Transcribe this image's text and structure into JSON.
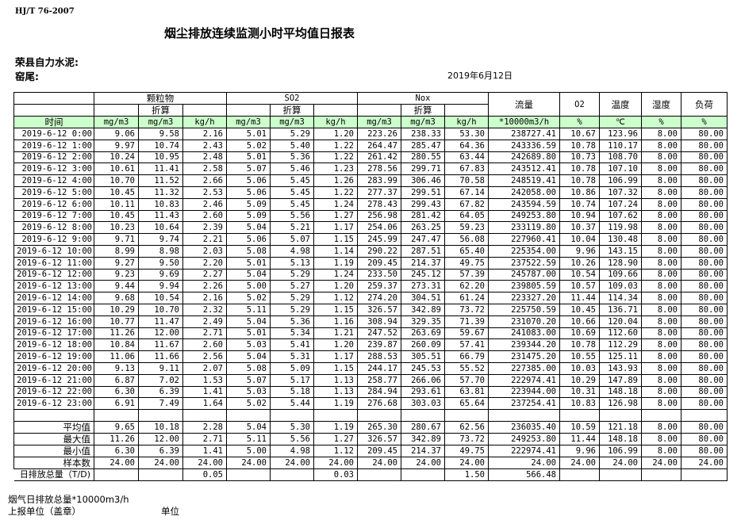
{
  "standard": "HJ/T  76-2007",
  "title": "烟尘排放连续监测小时平均值日报表",
  "company": "荣县自力水泥:",
  "kiln": "窑尾:",
  "date": "2019年6月12日",
  "header": {
    "groups": [
      "颗粒物",
      "SO2",
      "Nox"
    ],
    "converted": "折算",
    "flow": "流量",
    "o2": "O2",
    "temp": "温度",
    "humidity": "湿度",
    "load": "负荷",
    "time": "时间",
    "units": [
      "mg/m3",
      "mg/m3",
      "kg/h",
      "mg/m3",
      "mg/m3",
      "kg/h",
      "mg/m3",
      "mg/m3",
      "kg/h",
      "*10000m3/h",
      "%",
      "℃",
      "%",
      "%"
    ]
  },
  "rows": [
    [
      "2019-6-12 0:00",
      "9.06",
      "9.58",
      "2.16",
      "5.01",
      "5.29",
      "1.20",
      "223.26",
      "238.33",
      "53.30",
      "238727.41",
      "10.67",
      "123.96",
      "8.00",
      "80.00"
    ],
    [
      "2019-6-12 1:00",
      "9.97",
      "10.74",
      "2.43",
      "5.02",
      "5.40",
      "1.22",
      "264.47",
      "285.47",
      "64.36",
      "243336.59",
      "10.78",
      "110.17",
      "8.00",
      "80.00"
    ],
    [
      "2019-6-12 2:00",
      "10.24",
      "10.95",
      "2.48",
      "5.01",
      "5.36",
      "1.22",
      "261.42",
      "280.55",
      "63.44",
      "242689.80",
      "10.73",
      "108.70",
      "8.00",
      "80.00"
    ],
    [
      "2019-6-12 3:00",
      "10.61",
      "11.41",
      "2.58",
      "5.07",
      "5.46",
      "1.23",
      "278.56",
      "299.71",
      "67.83",
      "243512.41",
      "10.78",
      "107.10",
      "8.00",
      "80.00"
    ],
    [
      "2019-6-12 4:00",
      "10.70",
      "11.52",
      "2.66",
      "5.06",
      "5.45",
      "1.26",
      "283.99",
      "306.46",
      "70.58",
      "248519.41",
      "10.78",
      "106.99",
      "8.00",
      "80.00"
    ],
    [
      "2019-6-12 5:00",
      "10.45",
      "11.32",
      "2.53",
      "5.06",
      "5.45",
      "1.22",
      "277.37",
      "299.51",
      "67.14",
      "242058.00",
      "10.86",
      "107.32",
      "8.00",
      "80.00"
    ],
    [
      "2019-6-12 6:00",
      "10.11",
      "10.83",
      "2.46",
      "5.09",
      "5.45",
      "1.24",
      "278.43",
      "299.43",
      "67.82",
      "243594.59",
      "10.74",
      "107.24",
      "8.00",
      "80.00"
    ],
    [
      "2019-6-12 7:00",
      "10.45",
      "11.43",
      "2.60",
      "5.09",
      "5.56",
      "1.27",
      "256.98",
      "281.42",
      "64.05",
      "249253.80",
      "10.94",
      "107.62",
      "8.00",
      "80.00"
    ],
    [
      "2019-6-12 8:00",
      "10.23",
      "10.64",
      "2.39",
      "5.04",
      "5.21",
      "1.17",
      "254.06",
      "263.25",
      "59.23",
      "233119.80",
      "10.37",
      "119.98",
      "8.00",
      "80.00"
    ],
    [
      "2019-6-12 9:00",
      "9.71",
      "9.74",
      "2.21",
      "5.06",
      "5.07",
      "1.15",
      "245.99",
      "247.47",
      "56.08",
      "227960.41",
      "10.04",
      "130.48",
      "8.00",
      "80.00"
    ],
    [
      "2019-6-12 10:00",
      "8.99",
      "8.98",
      "2.03",
      "5.08",
      "4.98",
      "1.14",
      "290.22",
      "287.51",
      "65.40",
      "225354.00",
      "9.96",
      "143.15",
      "8.00",
      "80.00"
    ],
    [
      "2019-6-12 11:00",
      "9.27",
      "9.50",
      "2.20",
      "5.01",
      "5.13",
      "1.19",
      "209.45",
      "214.37",
      "49.75",
      "237522.59",
      "10.26",
      "128.90",
      "8.00",
      "80.00"
    ],
    [
      "2019-6-12 12:00",
      "9.23",
      "9.69",
      "2.27",
      "5.04",
      "5.29",
      "1.24",
      "233.50",
      "245.12",
      "57.39",
      "245787.00",
      "10.54",
      "109.66",
      "8.00",
      "80.00"
    ],
    [
      "2019-6-12 13:00",
      "9.44",
      "9.94",
      "2.26",
      "5.00",
      "5.27",
      "1.20",
      "259.37",
      "273.31",
      "62.20",
      "239805.59",
      "10.57",
      "109.03",
      "8.00",
      "80.00"
    ],
    [
      "2019-6-12 14:00",
      "9.68",
      "10.54",
      "2.16",
      "5.02",
      "5.29",
      "1.12",
      "274.20",
      "304.51",
      "61.24",
      "223327.20",
      "11.44",
      "114.34",
      "8.00",
      "80.00"
    ],
    [
      "2019-6-12 15:00",
      "10.29",
      "10.70",
      "2.32",
      "5.11",
      "5.29",
      "1.15",
      "326.57",
      "342.89",
      "73.72",
      "225750.59",
      "10.45",
      "136.71",
      "8.00",
      "80.00"
    ],
    [
      "2019-6-12 16:00",
      "10.77",
      "11.47",
      "2.49",
      "5.04",
      "5.36",
      "1.16",
      "308.94",
      "329.35",
      "71.39",
      "231070.20",
      "10.66",
      "120.04",
      "8.00",
      "80.00"
    ],
    [
      "2019-6-12 17:00",
      "11.26",
      "12.00",
      "2.71",
      "5.01",
      "5.34",
      "1.21",
      "247.52",
      "263.69",
      "59.67",
      "241083.00",
      "10.69",
      "112.60",
      "8.00",
      "80.00"
    ],
    [
      "2019-6-12 18:00",
      "10.84",
      "11.67",
      "2.60",
      "5.03",
      "5.41",
      "1.20",
      "239.87",
      "260.09",
      "57.41",
      "239344.20",
      "10.78",
      "112.29",
      "8.00",
      "80.00"
    ],
    [
      "2019-6-12 19:00",
      "11.06",
      "11.66",
      "2.56",
      "5.04",
      "5.31",
      "1.17",
      "288.53",
      "305.51",
      "66.79",
      "231475.20",
      "10.55",
      "125.11",
      "8.00",
      "80.00"
    ],
    [
      "2019-6-12 20:00",
      "9.13",
      "9.11",
      "2.07",
      "5.08",
      "5.09",
      "1.15",
      "244.17",
      "245.53",
      "55.52",
      "227385.00",
      "10.03",
      "143.93",
      "8.00",
      "80.00"
    ],
    [
      "2019-6-12 21:00",
      "6.87",
      "7.02",
      "1.53",
      "5.07",
      "5.17",
      "1.13",
      "258.77",
      "266.06",
      "57.70",
      "222974.41",
      "10.29",
      "147.89",
      "8.00",
      "80.00"
    ],
    [
      "2019-6-12 22:00",
      "6.30",
      "6.39",
      "1.41",
      "5.03",
      "5.18",
      "1.13",
      "284.94",
      "293.61",
      "63.81",
      "223944.00",
      "10.31",
      "148.18",
      "8.00",
      "80.00"
    ],
    [
      "2019-6-12 23:00",
      "6.91",
      "7.49",
      "1.64",
      "5.02",
      "5.44",
      "1.19",
      "276.68",
      "303.03",
      "65.64",
      "237254.41",
      "10.83",
      "126.98",
      "8.00",
      "80.00"
    ]
  ],
  "stats": [
    [
      "平均值",
      "9.65",
      "10.18",
      "2.28",
      "5.04",
      "5.30",
      "1.19",
      "265.30",
      "280.67",
      "62.56",
      "236035.40",
      "10.59",
      "121.18",
      "8.00",
      "80.00"
    ],
    [
      "最大值",
      "11.26",
      "12.00",
      "2.71",
      "5.11",
      "5.56",
      "1.27",
      "326.57",
      "342.89",
      "73.72",
      "249253.80",
      "11.44",
      "148.18",
      "8.00",
      "80.00"
    ],
    [
      "最小值",
      "6.30",
      "6.39",
      "1.41",
      "5.00",
      "4.98",
      "1.12",
      "209.45",
      "214.37",
      "49.75",
      "222974.41",
      "9.96",
      "106.99",
      "8.00",
      "80.00"
    ],
    [
      "样本数",
      "24.00",
      "24.00",
      "24.00",
      "24.00",
      "24.00",
      "24.00",
      "24.00",
      "24.00",
      "24.00",
      "24.00",
      "24.00",
      "24.00",
      "24.00",
      "24.00"
    ]
  ],
  "daily_total": [
    "日排放总量（T/D)",
    "",
    "",
    "0.05",
    "",
    "",
    "0.03",
    "",
    "",
    "1.50",
    "566.48",
    "",
    "",
    "",
    ""
  ],
  "footer": {
    "flue_gas_total": "烟气日排放总量*10000m3/h",
    "reporting_unit": "上报单位（盖章）",
    "unit": "单位"
  },
  "colors": {
    "header_green": "#ccffcc"
  }
}
